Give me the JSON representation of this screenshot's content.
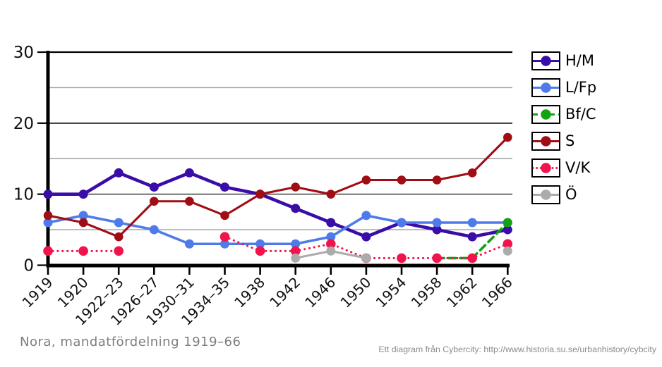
{
  "title": "Nora, mandatfördelning 1919–66",
  "credit": "Ett diagram från Cybercity: http://www.historia.su.se/urbanhistory/cybcity",
  "chart_data": {
    "type": "line",
    "title": "Nora, mandatfördelning 1919–66",
    "xlabel": "",
    "ylabel": "",
    "ylim": [
      0,
      30
    ],
    "yticks": [
      0,
      10,
      20,
      30
    ],
    "ygrid_minor": [
      5,
      15,
      25
    ],
    "grid": true,
    "legend_position": "right",
    "categories": [
      "1919",
      "1920",
      "1922–23",
      "1926–27",
      "1930–31",
      "1934–35",
      "1938",
      "1942",
      "1946",
      "1950",
      "1954",
      "1958",
      "1962",
      "1966"
    ],
    "series": [
      {
        "id": "hm",
        "name": "H/M",
        "color": "#3A0CA8",
        "line_style": "solid",
        "values": [
          10,
          10,
          13,
          11,
          13,
          11,
          10,
          8,
          6,
          4,
          6,
          5,
          4,
          5
        ]
      },
      {
        "id": "lfp",
        "name": "L/Fp",
        "color": "#4F7BEA",
        "line_style": "solid",
        "values": [
          6,
          7,
          6,
          5,
          3,
          3,
          3,
          3,
          4,
          7,
          6,
          6,
          6,
          6
        ]
      },
      {
        "id": "bfc",
        "name": "Bf/C",
        "color": "#12A312",
        "line_style": "dashed",
        "values": [
          null,
          null,
          null,
          null,
          null,
          null,
          null,
          null,
          null,
          null,
          null,
          1,
          1,
          6
        ]
      },
      {
        "id": "s",
        "name": "S",
        "color": "#A00D14",
        "line_style": "solid",
        "values": [
          7,
          6,
          4,
          9,
          9,
          7,
          10,
          11,
          10,
          12,
          12,
          12,
          13,
          18
        ]
      },
      {
        "id": "vk",
        "name": "V/K",
        "color": "#F0144B",
        "line_style": "dotted",
        "values": [
          2,
          2,
          2,
          null,
          null,
          4,
          2,
          2,
          3,
          1,
          1,
          1,
          1,
          3
        ]
      },
      {
        "id": "o",
        "name": "Ö",
        "color": "#ABABAB",
        "line_style": "solid",
        "values": [
          null,
          null,
          null,
          null,
          null,
          null,
          null,
          1,
          2,
          1,
          null,
          null,
          null,
          2
        ]
      }
    ]
  }
}
